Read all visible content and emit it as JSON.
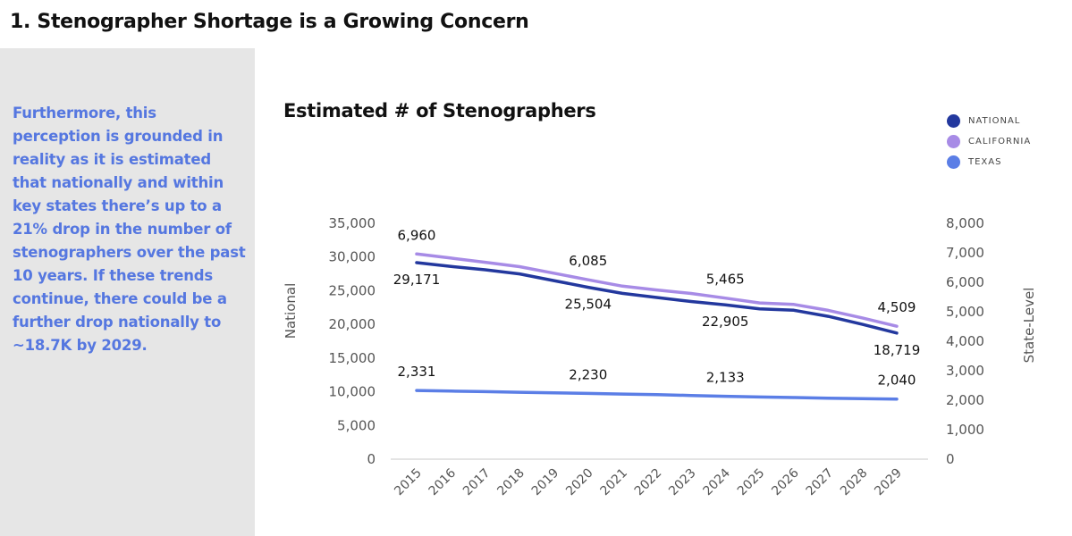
{
  "page": {
    "title": "1. Stenographer Shortage is a Growing Concern",
    "text": "Furthermore, this perception is grounded in reality as it is estimated that nationally and within key states there’s up to a 21% drop in the number of stenographers over the past 10 years. If these trends continue, there could be a further drop nationally to ~18.7K by 2029.",
    "text_color": "#5577e0",
    "panel_color": "#e6e6e6"
  },
  "chart_data": {
    "type": "line",
    "title": "Estimated # of Stenographers",
    "ylabel": "National",
    "y2label": "State-Level",
    "x": [
      "2015",
      "2016",
      "2017",
      "2018",
      "2019",
      "2020",
      "2021",
      "2022",
      "2023",
      "2024",
      "2025",
      "2026",
      "2027",
      "2028",
      "2029"
    ],
    "ylim": [
      0,
      35000
    ],
    "y2lim": [
      0,
      8000
    ],
    "yticks": [
      "0",
      "5,000",
      "10,000",
      "15,000",
      "20,000",
      "25,000",
      "30,000",
      "35,000"
    ],
    "y2ticks": [
      "0",
      "1,000",
      "2,000",
      "3,000",
      "4,000",
      "5,000",
      "6,000",
      "7,000",
      "8,000"
    ],
    "legend_position": "top-right",
    "grid": false,
    "series": [
      {
        "name": "NATIONAL",
        "axis": "left",
        "color": "#23389e",
        "values": [
          29171,
          28600,
          28100,
          27500,
          26500,
          25504,
          24600,
          24000,
          23400,
          22905,
          22300,
          22100,
          21200,
          20000,
          18719
        ],
        "labels": [
          {
            "index": 0,
            "text": "29,171",
            "pos": "below"
          },
          {
            "index": 5,
            "text": "25,504",
            "pos": "below"
          },
          {
            "index": 9,
            "text": "22,905",
            "pos": "below"
          },
          {
            "index": 14,
            "text": "18,719",
            "pos": "below"
          }
        ]
      },
      {
        "name": "CALIFORNIA",
        "axis": "right",
        "color": "#a78be6",
        "values": [
          6960,
          6820,
          6680,
          6530,
          6310,
          6085,
          5870,
          5740,
          5620,
          5465,
          5300,
          5250,
          5050,
          4790,
          4509
        ],
        "labels": [
          {
            "index": 0,
            "text": "6,960",
            "pos": "above"
          },
          {
            "index": 5,
            "text": "6,085",
            "pos": "above"
          },
          {
            "index": 9,
            "text": "5,465",
            "pos": "above"
          },
          {
            "index": 14,
            "text": "4,509",
            "pos": "above"
          }
        ]
      },
      {
        "name": "TEXAS",
        "axis": "right",
        "color": "#5b7ee6",
        "values": [
          2331,
          2310,
          2290,
          2270,
          2250,
          2230,
          2210,
          2190,
          2160,
          2133,
          2110,
          2090,
          2070,
          2055,
          2040
        ],
        "labels": [
          {
            "index": 0,
            "text": "2,331",
            "pos": "above"
          },
          {
            "index": 5,
            "text": "2,230",
            "pos": "above"
          },
          {
            "index": 9,
            "text": "2,133",
            "pos": "above"
          },
          {
            "index": 14,
            "text": "2,040",
            "pos": "above"
          }
        ]
      }
    ]
  }
}
